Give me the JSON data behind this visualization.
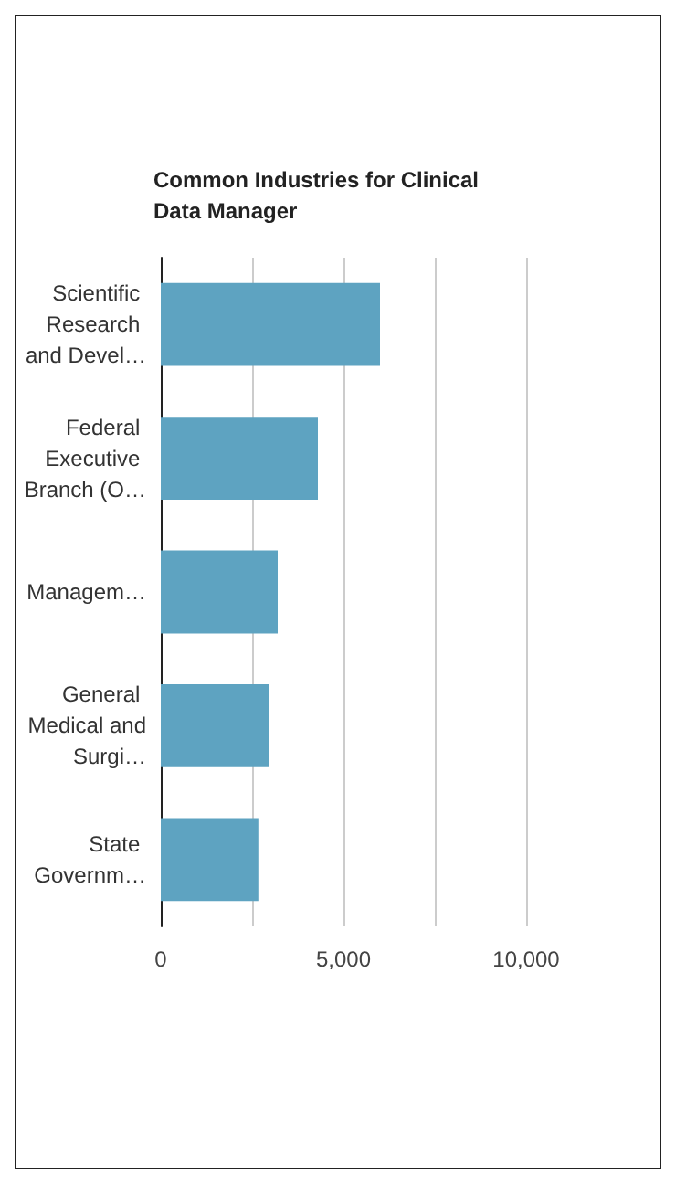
{
  "chart_data": {
    "type": "bar",
    "orientation": "horizontal",
    "title": "Common Industries for Clinical Data Manager",
    "categories": [
      "Scientific Research and Devel…",
      "Federal Executive Branch (O…",
      "Managem…",
      "General Medical and Surgi…",
      "State Governm…"
    ],
    "values": [
      6000,
      4300,
      3200,
      2950,
      2670
    ],
    "color": "#5ea3c1",
    "xlim": [
      0,
      10000
    ],
    "xticks": [
      0,
      {
        "value": 2500,
        "label": null
      },
      {
        "value": 5000,
        "label": "5,000"
      },
      {
        "value": 7500,
        "label": null
      },
      {
        "value": 10000,
        "label": "10,000"
      }
    ],
    "grid": "x"
  }
}
